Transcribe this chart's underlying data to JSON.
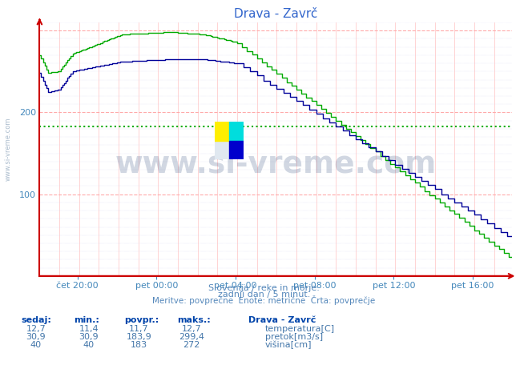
{
  "title": "Drava - Zavrč",
  "bg_color": "#ffffff",
  "plot_bg_color": "#ffffff",
  "title_color": "#3366cc",
  "tick_color": "#4488bb",
  "avg_line_value": 183,
  "avg_line_color": "#00aa00",
  "ylim": [
    0,
    310
  ],
  "yticks": [
    100,
    200
  ],
  "n_points": 288,
  "x_label_fractions": [
    0.083,
    0.25,
    0.417,
    0.583,
    0.75,
    0.917
  ],
  "x_labels": [
    "čet 20:00",
    "pet 00:00",
    "pet 04:00",
    "pet 08:00",
    "pet 12:00",
    "pet 16:00"
  ],
  "subtitle1": "Slovenija / reke in morje.",
  "subtitle2": "zadnji dan / 5 minut.",
  "subtitle3": "Meritve: povprečne  Enote: metrične  Črta: povprečje",
  "legend_title": "Drava - Zavrč",
  "legend_labels": [
    "temperatura[C]",
    "pretok[m3/s]",
    "višina[cm]"
  ],
  "legend_colors": [
    "#cc0000",
    "#00bb00",
    "#0000bb"
  ],
  "stats_headers": [
    "sedaj:",
    "min.:",
    "povpr.:",
    "maks.:"
  ],
  "stats_data": [
    [
      "12,7",
      "11,4",
      "11,7",
      "12,7"
    ],
    [
      "30,9",
      "30,9",
      "183,9",
      "299,4"
    ],
    [
      "40",
      "40",
      "183",
      "272"
    ]
  ],
  "watermark": "www.si-vreme.com",
  "watermark_color": "#1a3a6e",
  "temperature_color": "#cc0000",
  "pretok_color": "#00aa00",
  "visina_color": "#000099",
  "vgrid_color": "#ffcccc",
  "hgrid_color": "#ccccee",
  "axis_color": "#cc0000",
  "sidebar_text": "www.si-vreme.com"
}
